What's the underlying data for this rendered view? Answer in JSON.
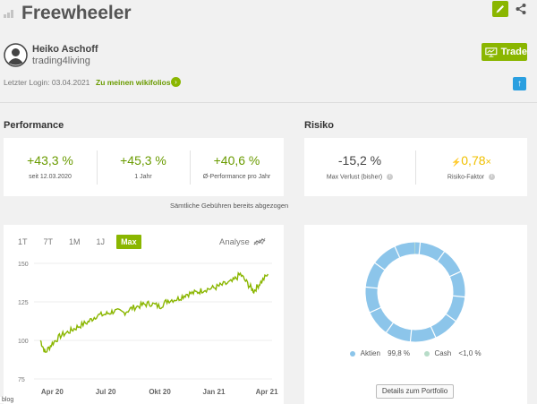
{
  "header": {
    "title": "Freewheeler",
    "edit_icon": "pencil-icon",
    "share_icon": "share-icon"
  },
  "trader": {
    "name": "Heiko Aschoff",
    "handle": "trading4living",
    "last_login": "Letzter Login: 03.04.2021",
    "wiki_link": "Zu meinen wikifolios",
    "trade_label": "Trade"
  },
  "performance": {
    "heading": "Performance",
    "stats": [
      {
        "value": "+43,3 %",
        "label": "seit 12.03.2020"
      },
      {
        "value": "+45,3 %",
        "label": "1 Jahr"
      },
      {
        "value": "+40,6 %",
        "label": "Ø-Performance pro Jahr"
      }
    ],
    "fees_note": "Sämtliche Gebühren bereits abgezogen"
  },
  "risk": {
    "heading": "Risiko",
    "max_loss": {
      "value": "-15,2 %",
      "label": "Max Verlust (bisher)"
    },
    "risk_factor": {
      "value": "0,78",
      "suffix": "×",
      "label": "Risiko-Faktor"
    }
  },
  "chart_tabs": {
    "tabs": [
      "1T",
      "7T",
      "1M",
      "1J",
      "Max"
    ],
    "active": "Max",
    "analyse": "Analyse"
  },
  "chart_data": {
    "type": "line",
    "title": "",
    "xlabel": "",
    "ylabel": "",
    "ylim": [
      75,
      150
    ],
    "yticks": [
      "150",
      "125",
      "100",
      "75"
    ],
    "xticks": [
      "Apr 20",
      "Jul 20",
      "Okt 20",
      "Jan 21",
      "Apr 21"
    ],
    "series": [
      {
        "values_by_month": [
          {
            "x": "2020-03-12",
            "y": 100
          },
          {
            "x": "2020-03-20",
            "y": 92
          },
          {
            "x": "2020-04-01",
            "y": 98
          },
          {
            "x": "2020-04-15",
            "y": 103
          },
          {
            "x": "2020-05-01",
            "y": 106
          },
          {
            "x": "2020-05-15",
            "y": 109
          },
          {
            "x": "2020-06-01",
            "y": 112
          },
          {
            "x": "2020-06-15",
            "y": 116
          },
          {
            "x": "2020-07-01",
            "y": 117
          },
          {
            "x": "2020-07-15",
            "y": 119
          },
          {
            "x": "2020-08-01",
            "y": 118
          },
          {
            "x": "2020-08-15",
            "y": 121
          },
          {
            "x": "2020-09-01",
            "y": 123
          },
          {
            "x": "2020-09-15",
            "y": 124
          },
          {
            "x": "2020-10-01",
            "y": 122
          },
          {
            "x": "2020-10-15",
            "y": 126
          },
          {
            "x": "2020-11-01",
            "y": 127
          },
          {
            "x": "2020-11-15",
            "y": 130
          },
          {
            "x": "2020-12-01",
            "y": 131
          },
          {
            "x": "2020-12-15",
            "y": 133
          },
          {
            "x": "2021-01-01",
            "y": 134
          },
          {
            "x": "2021-01-15",
            "y": 136
          },
          {
            "x": "2021-02-01",
            "y": 138
          },
          {
            "x": "2021-02-15",
            "y": 143
          },
          {
            "x": "2021-03-01",
            "y": 136
          },
          {
            "x": "2021-03-10",
            "y": 132
          },
          {
            "x": "2021-03-20",
            "y": 137
          },
          {
            "x": "2021-04-03",
            "y": 143
          }
        ],
        "color": "#8ab600"
      }
    ]
  },
  "portfolio": {
    "chart_data": {
      "type": "pie",
      "categories": [
        "Aktien",
        "Cash"
      ],
      "values": [
        99.8,
        0.2
      ],
      "value_labels": [
        "99,8 %",
        "<1,0 %"
      ],
      "colors": [
        "#8cc5ea",
        "#b7dcc8"
      ]
    },
    "details_button": "Details zum Portfolio"
  },
  "footer_tag": "blog",
  "colors": {
    "accent": "#8ab600",
    "link": "#6a9b00",
    "risk_accent": "#f0c000",
    "info_blue": "#2a9fe0"
  }
}
